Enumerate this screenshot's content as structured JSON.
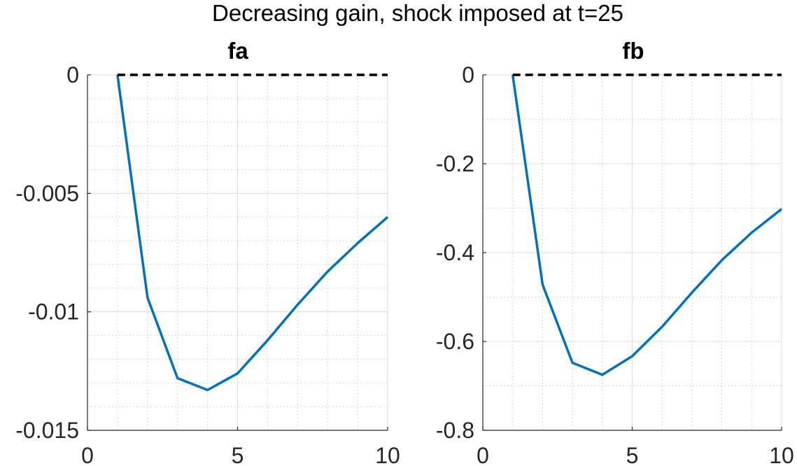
{
  "figure": {
    "title": "Decreasing gain, shock imposed at t=25"
  },
  "chart_data": [
    {
      "type": "line",
      "title": "fa",
      "xlim": [
        0,
        10
      ],
      "ylim": [
        -0.015,
        0
      ],
      "xticks": [
        0,
        5,
        10
      ],
      "xtick_labels": [
        "0",
        "5",
        "10"
      ],
      "yticks": [
        0,
        -0.005,
        -0.01,
        -0.015
      ],
      "ytick_labels": [
        "0",
        "-0.005",
        "-0.01",
        "-0.015"
      ],
      "grid": true,
      "minor_grid": true,
      "series": [
        {
          "color": "#0072BD",
          "style": "solid",
          "x": [
            1,
            2,
            3,
            4,
            5,
            6,
            7,
            8,
            9,
            10
          ],
          "y": [
            0,
            -0.0094,
            -0.0128,
            -0.0133,
            -0.0126,
            -0.0112,
            -0.0097,
            -0.0083,
            -0.0071,
            -0.006
          ]
        },
        {
          "color": "#000000",
          "style": "dashed",
          "x": [
            1,
            10
          ],
          "y": [
            0,
            0
          ]
        }
      ]
    },
    {
      "type": "line",
      "title": "fb",
      "xlim": [
        0,
        10
      ],
      "ylim": [
        -0.8,
        0
      ],
      "xticks": [
        0,
        5,
        10
      ],
      "xtick_labels": [
        "0",
        "5",
        "10"
      ],
      "yticks": [
        0,
        -0.2,
        -0.4,
        -0.6,
        -0.8
      ],
      "ytick_labels": [
        "0",
        "-0.2",
        "-0.4",
        "-0.6",
        "-0.8"
      ],
      "grid": true,
      "minor_grid": true,
      "series": [
        {
          "color": "#0072BD",
          "style": "solid",
          "x": [
            1,
            2,
            3,
            4,
            5,
            6,
            7,
            8,
            9,
            10
          ],
          "y": [
            0,
            -0.472,
            -0.648,
            -0.675,
            -0.633,
            -0.567,
            -0.49,
            -0.417,
            -0.355,
            -0.302
          ]
        },
        {
          "color": "#000000",
          "style": "dashed",
          "x": [
            1,
            10
          ],
          "y": [
            0,
            0
          ]
        }
      ]
    }
  ]
}
